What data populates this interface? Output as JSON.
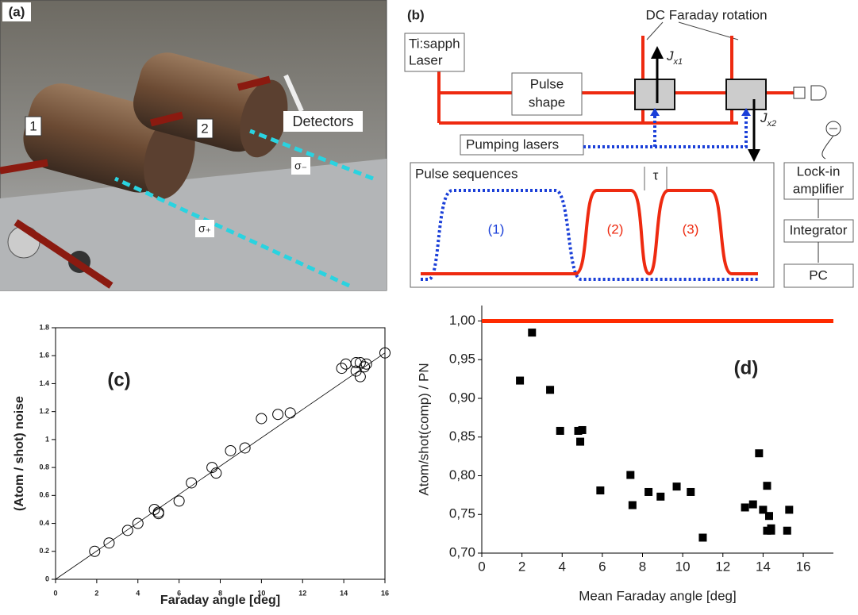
{
  "panel_a": {
    "label": "(a)",
    "cell_1": "1",
    "cell_2": "2",
    "detectors": "Detectors",
    "sigma_minus": "σ₋",
    "sigma_plus": "σ₊"
  },
  "panel_b": {
    "label": "(b)",
    "dc_faraday": "DC Faraday rotation",
    "laser": [
      "Ti:sapph",
      "Laser"
    ],
    "pulse_shape": [
      "Pulse",
      "shape"
    ],
    "jx1": {
      "symbol": "J",
      "subscript": "x1"
    },
    "jx2": {
      "symbol": "J",
      "subscript": "x2"
    },
    "pumping": "Pumping lasers",
    "sequences": "Pulse sequences",
    "tau": "τ",
    "pulse_1": "(1)",
    "pulse_2": "(2)",
    "pulse_3": "(3)",
    "lockin": [
      "Lock-in",
      "amplifier"
    ],
    "integrator": "Integrator",
    "pc": "PC"
  },
  "chart_data": [
    {
      "type": "scatter",
      "title": "(c)",
      "x_label": "Faraday angle [deg]",
      "y_label": "(Atom / shot) noise",
      "marker": "circle",
      "color": "#000000",
      "x": [
        1.9,
        2.6,
        3.5,
        4,
        4.8,
        5,
        5,
        6,
        6.6,
        7.6,
        7.8,
        8.5,
        9.2,
        10,
        10.8,
        11.4,
        13.9,
        14.1,
        14.6,
        14.6,
        14.8,
        14.8,
        15,
        15.1,
        16
      ],
      "y": [
        0.2,
        0.26,
        0.35,
        0.4,
        0.5,
        0.47,
        0.48,
        0.56,
        0.69,
        0.8,
        0.76,
        0.92,
        0.94,
        1.15,
        1.18,
        1.19,
        1.51,
        1.54,
        1.55,
        1.49,
        1.45,
        1.55,
        1.52,
        1.54,
        1.62
      ],
      "fit_line": {
        "x": [
          0,
          16
        ],
        "y": [
          0,
          1.62
        ]
      },
      "xlim": [
        0,
        16
      ],
      "ylim": [
        0,
        1.8
      ],
      "xticks": [
        0,
        2,
        4,
        6,
        8,
        10,
        12,
        14,
        16
      ],
      "yticks": [
        0,
        0.2,
        0.4,
        0.6,
        0.8,
        1,
        1.2,
        1.4,
        1.6,
        1.8
      ]
    },
    {
      "type": "scatter",
      "title": "(d)",
      "x_label": "Mean Faraday angle [deg]",
      "y_label": "Atom/shot(comp) / PN",
      "marker": "square",
      "color": "#000000",
      "x": [
        1.9,
        2.5,
        3.4,
        3.9,
        4.8,
        4.9,
        5,
        5.9,
        7.4,
        7.5,
        8.3,
        8.9,
        9.7,
        10.4,
        11,
        13.1,
        13.5,
        13.8,
        14,
        14.2,
        14.2,
        14.3,
        14.4,
        14.4,
        15.2,
        15.3
      ],
      "y": [
        0.923,
        0.985,
        0.911,
        0.858,
        0.858,
        0.844,
        0.859,
        0.781,
        0.801,
        0.762,
        0.779,
        0.773,
        0.786,
        0.779,
        0.72,
        0.759,
        0.763,
        0.829,
        0.756,
        0.729,
        0.787,
        0.748,
        0.732,
        0.729,
        0.729,
        0.756
      ],
      "reference_line": {
        "value": 1.0,
        "color": "#ff2a00"
      },
      "xlim": [
        0,
        17.5
      ],
      "ylim": [
        0.7,
        1.02
      ],
      "xticks": [
        0,
        2,
        4,
        6,
        8,
        10,
        12,
        14,
        16
      ],
      "yticks": [
        {
          "value": 0.7,
          "label": "0,70"
        },
        {
          "value": 0.75,
          "label": "0,75"
        },
        {
          "value": 0.8,
          "label": "0,80"
        },
        {
          "value": 0.85,
          "label": "0,85"
        },
        {
          "value": 0.9,
          "label": "0,90"
        },
        {
          "value": 0.95,
          "label": "0,95"
        },
        {
          "value": 1.0,
          "label": "1,00"
        }
      ]
    }
  ]
}
